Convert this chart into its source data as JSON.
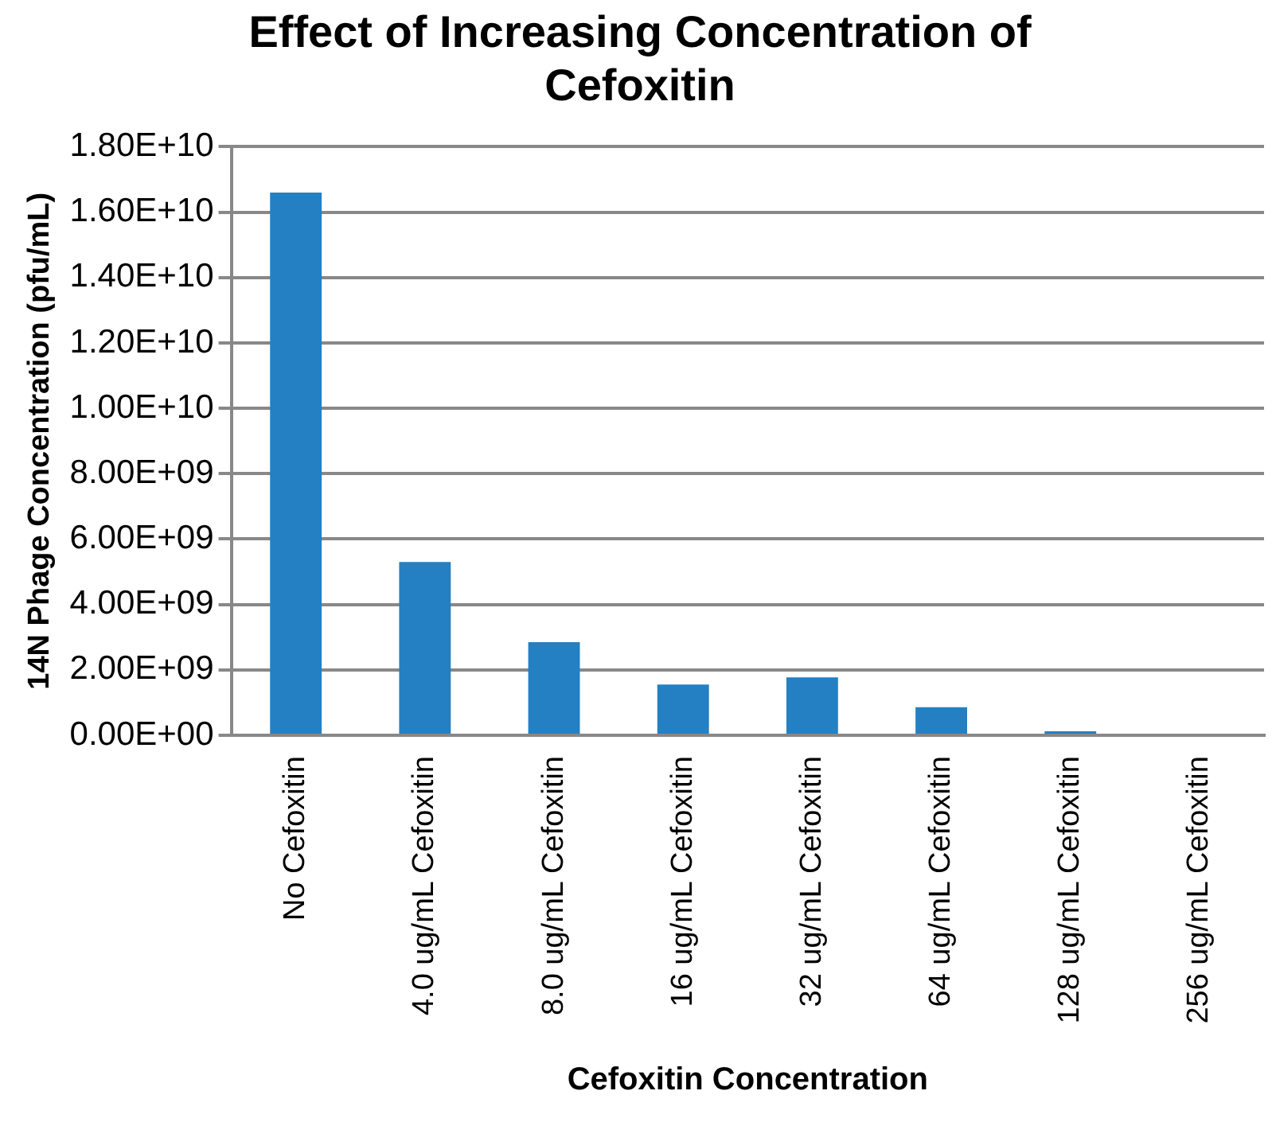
{
  "chart_data": {
    "type": "bar",
    "title": "Effect of Increasing Concentration of Cefoxitin",
    "xlabel": "Cefoxitin Concentration",
    "ylabel": "14N Phage Concentration (pfu/mL)",
    "categories": [
      "No Cefoxitin",
      "4.0 ug/mL Cefoxitin",
      "8.0 ug/mL Cefoxitin",
      "16 ug/mL Cefoxitin",
      "32 ug/mL Cefoxitin",
      "64 ug/mL Cefoxitin",
      "128 ug/mL Cefoxitin",
      "256 ug/mL Cefoxitin"
    ],
    "values": [
      16600000000.0,
      5300000000.0,
      2850000000.0,
      1550000000.0,
      1770000000.0,
      860000000.0,
      120000000.0,
      0
    ],
    "color": "#2480c2",
    "ylim": [
      0,
      18000000000.0
    ],
    "yticks": [
      {
        "value": 0,
        "label": "0.00E+00"
      },
      {
        "value": 2000000000.0,
        "label": "2.00E+09"
      },
      {
        "value": 4000000000.0,
        "label": "4.00E+09"
      },
      {
        "value": 6000000000.0,
        "label": "6.00E+09"
      },
      {
        "value": 8000000000.0,
        "label": "8.00E+09"
      },
      {
        "value": 10000000000.0,
        "label": "1.00E+10"
      },
      {
        "value": 12000000000.0,
        "label": "1.20E+10"
      },
      {
        "value": 14000000000.0,
        "label": "1.40E+10"
      },
      {
        "value": 16000000000.0,
        "label": "1.60E+10"
      },
      {
        "value": 18000000000.0,
        "label": "1.80E+10"
      }
    ],
    "grid": "y",
    "legend": false
  }
}
